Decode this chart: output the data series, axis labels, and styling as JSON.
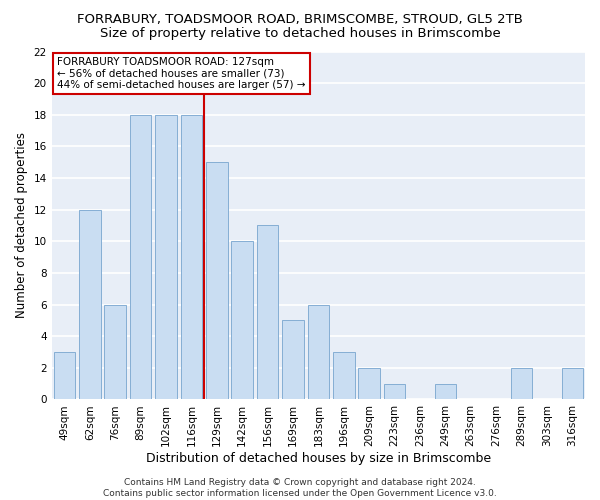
{
  "title1": "FORRABURY, TOADSMOOR ROAD, BRIMSCOMBE, STROUD, GL5 2TB",
  "title2": "Size of property relative to detached houses in Brimscombe",
  "xlabel": "Distribution of detached houses by size in Brimscombe",
  "ylabel": "Number of detached properties",
  "categories": [
    "49sqm",
    "62sqm",
    "76sqm",
    "89sqm",
    "102sqm",
    "116sqm",
    "129sqm",
    "142sqm",
    "156sqm",
    "169sqm",
    "183sqm",
    "196sqm",
    "209sqm",
    "223sqm",
    "236sqm",
    "249sqm",
    "263sqm",
    "276sqm",
    "289sqm",
    "303sqm",
    "316sqm"
  ],
  "values": [
    3,
    12,
    6,
    18,
    18,
    18,
    15,
    10,
    11,
    5,
    6,
    3,
    2,
    1,
    0,
    1,
    0,
    0,
    2,
    0,
    2
  ],
  "bar_color": "#c9ddf2",
  "bar_edge_color": "#85aed4",
  "vline_x_index": 6,
  "vline_color": "#cc0000",
  "annotation_line1": "FORRABURY TOADSMOOR ROAD: 127sqm",
  "annotation_line2": "← 56% of detached houses are smaller (73)",
  "annotation_line3": "44% of semi-detached houses are larger (57) →",
  "annotation_box_color": "#ffffff",
  "annotation_box_edge": "#cc0000",
  "ylim": [
    0,
    22
  ],
  "yticks": [
    0,
    2,
    4,
    6,
    8,
    10,
    12,
    14,
    16,
    18,
    20,
    22
  ],
  "footnote": "Contains HM Land Registry data © Crown copyright and database right 2024.\nContains public sector information licensed under the Open Government Licence v3.0.",
  "bg_color": "#ffffff",
  "plot_bg_color": "#e8eef7",
  "grid_color": "#ffffff",
  "title1_fontsize": 9.5,
  "title2_fontsize": 9.5,
  "xlabel_fontsize": 9,
  "ylabel_fontsize": 8.5,
  "tick_fontsize": 7.5,
  "annot_fontsize": 7.5,
  "footnote_fontsize": 6.5
}
